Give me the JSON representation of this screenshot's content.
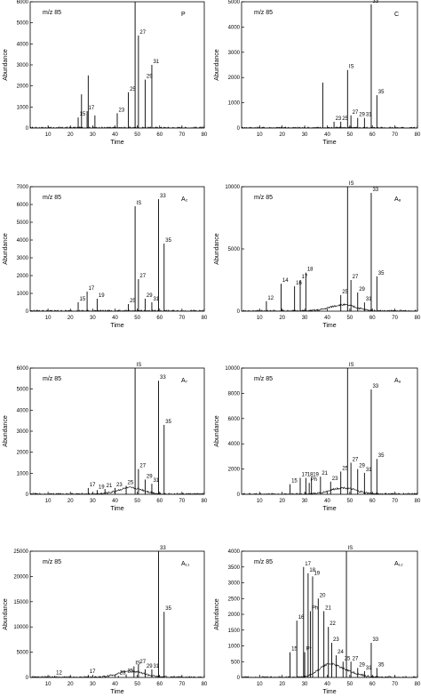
{
  "chart_data": [
    {
      "type": "line",
      "ion_label": "m/z 85",
      "sample_label": "P",
      "xlabel": "Time",
      "ylabel": "Abundance",
      "xlim": [
        2,
        80
      ],
      "ylim": [
        0,
        6000
      ],
      "xticks": [
        10,
        20,
        30,
        40,
        50,
        60,
        70,
        80
      ],
      "yticks": [
        0,
        1000,
        2000,
        3000,
        4000,
        5000,
        6000
      ],
      "peaks": [
        {
          "label": "15",
          "x": 23.5,
          "y": 500
        },
        {
          "label": "",
          "x": 25,
          "y": 1600
        },
        {
          "label": "17",
          "x": 27.5,
          "y": 800
        },
        {
          "label": "",
          "x": 28,
          "y": 2500
        },
        {
          "label": "",
          "x": 31,
          "y": 600
        },
        {
          "label": "23",
          "x": 41,
          "y": 700
        },
        {
          "label": "25",
          "x": 46,
          "y": 1700
        },
        {
          "label": "IS",
          "x": 49,
          "y": 6000
        },
        {
          "label": "27",
          "x": 50.5,
          "y": 4400
        },
        {
          "label": "29",
          "x": 53.5,
          "y": 2300
        },
        {
          "label": "31",
          "x": 56.5,
          "y": 3000
        }
      ]
    },
    {
      "type": "line",
      "ion_label": "m/z 85",
      "sample_label": "C",
      "xlabel": "Time",
      "ylabel": "Abundance",
      "xlim": [
        2,
        80
      ],
      "ylim": [
        0,
        5000
      ],
      "xticks": [
        10,
        20,
        30,
        40,
        50,
        60,
        70,
        80
      ],
      "yticks": [
        0,
        1000,
        2000,
        3000,
        4000,
        5000
      ],
      "peaks": [
        {
          "label": "",
          "x": 38,
          "y": 1800
        },
        {
          "label": "23",
          "x": 43,
          "y": 250
        },
        {
          "label": "25",
          "x": 46,
          "y": 250
        },
        {
          "label": "IS",
          "x": 49,
          "y": 2300
        },
        {
          "label": "27",
          "x": 50.5,
          "y": 500
        },
        {
          "label": "29",
          "x": 53.5,
          "y": 400
        },
        {
          "label": "31",
          "x": 56.5,
          "y": 400
        },
        {
          "label": "33",
          "x": 59.5,
          "y": 4900
        },
        {
          "label": "35",
          "x": 62,
          "y": 1300
        }
      ]
    },
    {
      "type": "line",
      "ion_label": "m/z 85",
      "sample_label": "A₂",
      "xlabel": "Time",
      "ylabel": "Abundance",
      "xlim": [
        2,
        80
      ],
      "ylim": [
        0,
        7000
      ],
      "xticks": [
        10,
        20,
        30,
        40,
        50,
        60,
        70,
        80
      ],
      "yticks": [
        0,
        1000,
        2000,
        3000,
        4000,
        5000,
        6000,
        7000
      ],
      "peaks": [
        {
          "label": "15",
          "x": 23.5,
          "y": 500
        },
        {
          "label": "17",
          "x": 27.5,
          "y": 1100
        },
        {
          "label": "19",
          "x": 32,
          "y": 700
        },
        {
          "label": "25",
          "x": 46,
          "y": 400
        },
        {
          "label": "IS",
          "x": 49,
          "y": 5900
        },
        {
          "label": "27",
          "x": 50.5,
          "y": 1800
        },
        {
          "label": "29",
          "x": 53.5,
          "y": 700
        },
        {
          "label": "31",
          "x": 56.5,
          "y": 500
        },
        {
          "label": "33",
          "x": 59.5,
          "y": 6300
        },
        {
          "label": "35",
          "x": 62,
          "y": 3800
        }
      ]
    },
    {
      "type": "line",
      "ion_label": "m/z 85",
      "sample_label": "A₈",
      "xlabel": "Time",
      "ylabel": "Abundance",
      "xlim": [
        2,
        80
      ],
      "ylim": [
        0,
        10000
      ],
      "xticks": [
        10,
        20,
        30,
        40,
        50,
        60,
        70,
        80
      ],
      "yticks": [
        0,
        5000,
        10000
      ],
      "peaks": [
        {
          "label": "12",
          "x": 13,
          "y": 800
        },
        {
          "label": "14",
          "x": 19.5,
          "y": 2200
        },
        {
          "label": "16",
          "x": 25.5,
          "y": 2000
        },
        {
          "label": "17",
          "x": 28,
          "y": 2500
        },
        {
          "label": "18",
          "x": 30.5,
          "y": 3100
        },
        {
          "label": "25",
          "x": 46,
          "y": 1300
        },
        {
          "label": "IS",
          "x": 49,
          "y": 10000
        },
        {
          "label": "27",
          "x": 50.5,
          "y": 2500
        },
        {
          "label": "29",
          "x": 53.5,
          "y": 1500
        },
        {
          "label": "31",
          "x": 56.5,
          "y": 700
        },
        {
          "label": "33",
          "x": 59.5,
          "y": 9500
        },
        {
          "label": "35",
          "x": 62,
          "y": 2800
        }
      ]
    },
    {
      "type": "line",
      "ion_label": "m/z 85",
      "sample_label": "A₇",
      "xlabel": "Time",
      "ylabel": "Abundance",
      "xlim": [
        2,
        80
      ],
      "ylim": [
        0,
        6000
      ],
      "xticks": [
        10,
        20,
        30,
        40,
        50,
        60,
        70,
        80
      ],
      "yticks": [
        0,
        1000,
        2000,
        3000,
        4000,
        5000,
        6000
      ],
      "peaks": [
        {
          "label": "17",
          "x": 28,
          "y": 300
        },
        {
          "label": "19",
          "x": 32,
          "y": 200
        },
        {
          "label": "21",
          "x": 35.5,
          "y": 250
        },
        {
          "label": "23",
          "x": 40,
          "y": 300
        },
        {
          "label": "25",
          "x": 45,
          "y": 400
        },
        {
          "label": "IS",
          "x": 49,
          "y": 6000
        },
        {
          "label": "27",
          "x": 50.5,
          "y": 1200
        },
        {
          "label": "29",
          "x": 53.5,
          "y": 700
        },
        {
          "label": "31",
          "x": 56.5,
          "y": 500
        },
        {
          "label": "33",
          "x": 59.5,
          "y": 5400
        },
        {
          "label": "35",
          "x": 62,
          "y": 3300
        }
      ]
    },
    {
      "type": "line",
      "ion_label": "m/z 85",
      "sample_label": "A₉",
      "xlabel": "Time",
      "ylabel": "Abundance",
      "xlim": [
        2,
        80
      ],
      "ylim": [
        0,
        10000
      ],
      "xticks": [
        10,
        20,
        30,
        40,
        50,
        60,
        70,
        80
      ],
      "yticks": [
        0,
        2000,
        4000,
        6000,
        8000,
        10000
      ],
      "peaks": [
        {
          "label": "15",
          "x": 23.5,
          "y": 800
        },
        {
          "label": "17",
          "x": 28,
          "y": 1300
        },
        {
          "label": "18",
          "x": 30.5,
          "y": 1300
        },
        {
          "label": "19",
          "x": 33,
          "y": 1300
        },
        {
          "label": "Ph",
          "x": 32,
          "y": 900
        },
        {
          "label": "21",
          "x": 37,
          "y": 1400
        },
        {
          "label": "23",
          "x": 41.5,
          "y": 1000
        },
        {
          "label": "25",
          "x": 46,
          "y": 1800
        },
        {
          "label": "IS",
          "x": 49,
          "y": 10000
        },
        {
          "label": "27",
          "x": 50.5,
          "y": 2500
        },
        {
          "label": "29",
          "x": 53.5,
          "y": 2000
        },
        {
          "label": "31",
          "x": 56.5,
          "y": 1700
        },
        {
          "label": "33",
          "x": 59.5,
          "y": 8300
        },
        {
          "label": "35",
          "x": 62,
          "y": 2800
        }
      ]
    },
    {
      "type": "line",
      "ion_label": "m/z 85",
      "sample_label": "A₁₁",
      "xlabel": "Time",
      "ylabel": "Abundance",
      "xlim": [
        2,
        80
      ],
      "ylim": [
        0,
        25000
      ],
      "xticks": [
        10,
        20,
        30,
        40,
        50,
        60,
        70,
        80
      ],
      "yticks": [
        0,
        5000,
        10000,
        15000,
        20000,
        25000
      ],
      "peaks": [
        {
          "label": "12",
          "x": 13,
          "y": 300
        },
        {
          "label": "17",
          "x": 28,
          "y": 500
        },
        {
          "label": "23",
          "x": 41.5,
          "y": 300
        },
        {
          "label": "25",
          "x": 45,
          "y": 600
        },
        {
          "label": "IS",
          "x": 48.5,
          "y": 2200
        },
        {
          "label": "27",
          "x": 50.5,
          "y": 2500
        },
        {
          "label": "29",
          "x": 53.5,
          "y": 1600
        },
        {
          "label": "31",
          "x": 56.5,
          "y": 1600
        },
        {
          "label": "33",
          "x": 59.5,
          "y": 25000
        },
        {
          "label": "35",
          "x": 62,
          "y": 13000
        }
      ]
    },
    {
      "type": "line",
      "ion_label": "m/z 85",
      "sample_label": "A₁₂",
      "xlabel": "Time",
      "ylabel": "Abundance",
      "xlim": [
        2,
        80
      ],
      "ylim": [
        0,
        4000
      ],
      "xticks": [
        10,
        20,
        30,
        40,
        50,
        60,
        70,
        80
      ],
      "yticks": [
        0,
        500,
        1000,
        1500,
        2000,
        2500,
        3000,
        3500,
        4000
      ],
      "peaks": [
        {
          "label": "15",
          "x": 23.5,
          "y": 800
        },
        {
          "label": "16",
          "x": 26.5,
          "y": 1800
        },
        {
          "label": "17",
          "x": 29.5,
          "y": 3500
        },
        {
          "label": "Pr",
          "x": 30,
          "y": 800
        },
        {
          "label": "18",
          "x": 31.5,
          "y": 3300
        },
        {
          "label": "Ph",
          "x": 32.5,
          "y": 2100
        },
        {
          "label": "19",
          "x": 33.5,
          "y": 3200
        },
        {
          "label": "20",
          "x": 36,
          "y": 2500
        },
        {
          "label": "21",
          "x": 38.5,
          "y": 2100
        },
        {
          "label": "22",
          "x": 40.5,
          "y": 1600
        },
        {
          "label": "23",
          "x": 42,
          "y": 1100
        },
        {
          "label": "24",
          "x": 44,
          "y": 700
        },
        {
          "label": "IS",
          "x": 48.5,
          "y": 4000
        },
        {
          "label": "25",
          "x": 47,
          "y": 500
        },
        {
          "label": "27",
          "x": 50.5,
          "y": 500
        },
        {
          "label": "29",
          "x": 53.5,
          "y": 300
        },
        {
          "label": "31",
          "x": 56.5,
          "y": 200
        },
        {
          "label": "33",
          "x": 59.5,
          "y": 1100
        },
        {
          "label": "35",
          "x": 62,
          "y": 300
        }
      ]
    }
  ]
}
